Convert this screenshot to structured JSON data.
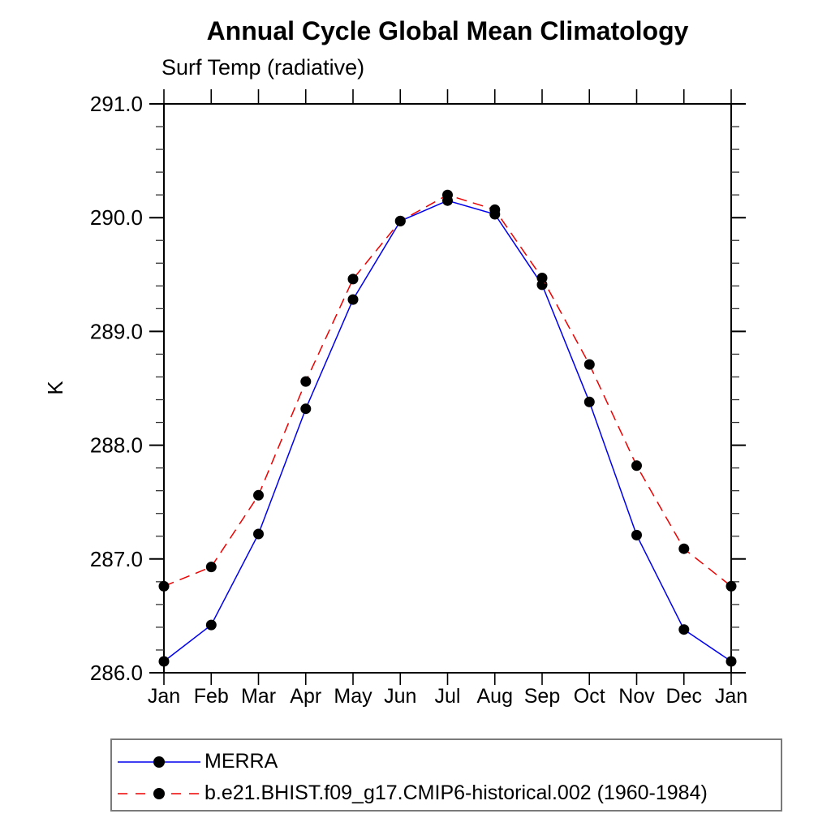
{
  "title": "Annual Cycle Global Mean Climatology",
  "subtitle": "Surf Temp (radiative)",
  "colors": {
    "merra_line": "#0000ee",
    "model_line": "#ee0000",
    "marker": "#000000",
    "axis": "#000000",
    "legend_border": "#7a7a7a"
  },
  "chart_data": {
    "type": "line",
    "title": "Annual Cycle Global Mean Climatology",
    "subtitle": "Surf Temp (radiative)",
    "ylabel": "K",
    "x_categories": [
      "Jan",
      "Feb",
      "Mar",
      "Apr",
      "May",
      "Jun",
      "Jul",
      "Aug",
      "Sep",
      "Oct",
      "Nov",
      "Dec",
      "Jan"
    ],
    "ylim": [
      286.0,
      291.0
    ],
    "y_tick_labels": [
      "286.0",
      "287.0",
      "288.0",
      "289.0",
      "290.0",
      "291.0"
    ],
    "y_minor_step": 0.2,
    "grid": false,
    "legend_position": "bottom-left",
    "series": [
      {
        "name": "MERRA",
        "color": "#0000ee",
        "line_style": "solid",
        "marker": "filled-circle",
        "marker_color": "#000000",
        "values": [
          286.1,
          286.42,
          287.22,
          288.32,
          289.28,
          289.97,
          290.15,
          290.03,
          289.41,
          288.38,
          287.21,
          286.38,
          286.1
        ]
      },
      {
        "name": "b.e21.BHIST.f09_g17.CMIP6-historical.002 (1960-1984)",
        "color": "#ee0000",
        "line_style": "dashed",
        "marker": "filled-circle",
        "marker_color": "#000000",
        "values": [
          286.76,
          286.93,
          287.56,
          288.56,
          289.46,
          289.97,
          290.2,
          290.07,
          289.47,
          288.71,
          287.82,
          287.09,
          286.76
        ]
      }
    ]
  }
}
